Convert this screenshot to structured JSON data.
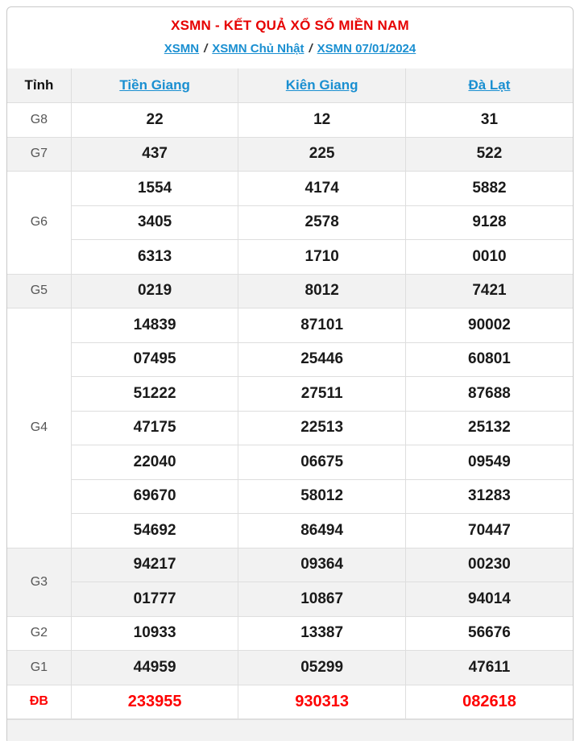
{
  "header": {
    "title": "XSMN - KẾT QUẢ XỔ SỐ MIỀN NAM",
    "separator": "/",
    "breadcrumb": [
      {
        "label": "XSMN"
      },
      {
        "label": "XSMN Chủ Nhật"
      },
      {
        "label": "XSMN 07/01/2024"
      }
    ]
  },
  "table": {
    "province_header": "Tỉnh",
    "columns": [
      "Tiền Giang",
      "Kiên Giang",
      "Đà Lạt"
    ],
    "rows": [
      {
        "prize": "G8",
        "shaded": false,
        "special": false,
        "values": [
          [
            "22",
            "12",
            "31"
          ]
        ]
      },
      {
        "prize": "G7",
        "shaded": true,
        "special": false,
        "values": [
          [
            "437",
            "225",
            "522"
          ]
        ]
      },
      {
        "prize": "G6",
        "shaded": false,
        "special": false,
        "values": [
          [
            "1554",
            "4174",
            "5882"
          ],
          [
            "3405",
            "2578",
            "9128"
          ],
          [
            "6313",
            "1710",
            "0010"
          ]
        ]
      },
      {
        "prize": "G5",
        "shaded": true,
        "special": false,
        "values": [
          [
            "0219",
            "8012",
            "7421"
          ]
        ]
      },
      {
        "prize": "G4",
        "shaded": false,
        "special": false,
        "values": [
          [
            "14839",
            "87101",
            "90002"
          ],
          [
            "07495",
            "25446",
            "60801"
          ],
          [
            "51222",
            "27511",
            "87688"
          ],
          [
            "47175",
            "22513",
            "25132"
          ],
          [
            "22040",
            "06675",
            "09549"
          ],
          [
            "69670",
            "58012",
            "31283"
          ],
          [
            "54692",
            "86494",
            "70447"
          ]
        ]
      },
      {
        "prize": "G3",
        "shaded": true,
        "special": false,
        "values": [
          [
            "94217",
            "09364",
            "00230"
          ],
          [
            "01777",
            "10867",
            "94014"
          ]
        ]
      },
      {
        "prize": "G2",
        "shaded": false,
        "special": false,
        "values": [
          [
            "10933",
            "13387",
            "56676"
          ]
        ]
      },
      {
        "prize": "G1",
        "shaded": true,
        "special": false,
        "values": [
          [
            "44959",
            "05299",
            "47611"
          ]
        ]
      },
      {
        "prize": "ĐB",
        "shaded": false,
        "special": true,
        "values": [
          [
            "233955",
            "930313",
            "082618"
          ]
        ]
      }
    ]
  },
  "colors": {
    "title_red": "#e60000",
    "special_red": "#fe0000",
    "link_blue": "#1a8fd1",
    "row_shade": "#f2f2f2",
    "border": "#dedede",
    "prize_label_gray": "#565656",
    "number_black": "#1a1a1a"
  }
}
